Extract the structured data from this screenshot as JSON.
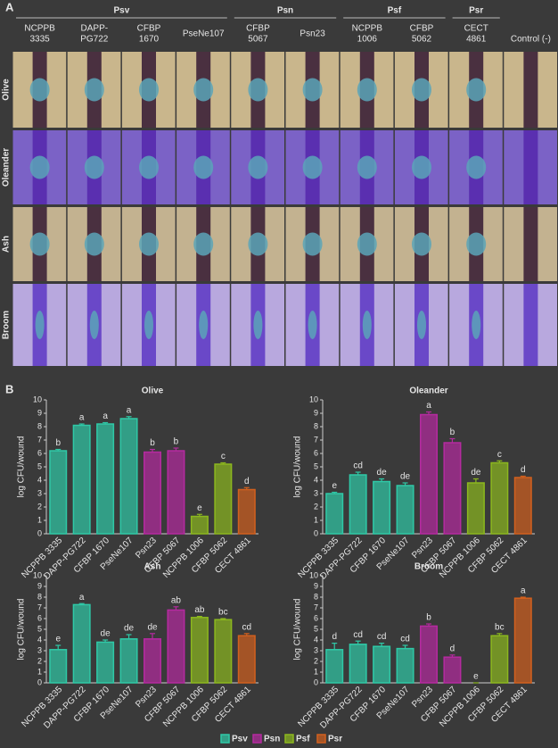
{
  "panel_a": {
    "label": "A",
    "groups": [
      {
        "name": "Psv",
        "strains": [
          [
            "NCPPB",
            "3335"
          ],
          [
            "DAPP-",
            "PG722"
          ],
          [
            "CFBP",
            "1670"
          ],
          [
            "PseNe107"
          ]
        ]
      },
      {
        "name": "Psn",
        "strains": [
          [
            "CFBP",
            "5067"
          ],
          [
            "Psn23"
          ]
        ]
      },
      {
        "name": "Psf",
        "strains": [
          [
            "NCPPB",
            "1006"
          ],
          [
            "CFBP",
            "5062"
          ]
        ]
      },
      {
        "name": "Psr",
        "strains": [
          [
            "CECT",
            "4861"
          ]
        ]
      }
    ],
    "control": "Control (-)",
    "rows": [
      "Olive",
      "Oleander",
      "Ash",
      "Broom"
    ]
  },
  "panel_b": {
    "label": "B"
  },
  "chart_data": [
    {
      "type": "bar",
      "title": "Olive",
      "ylabel": "log CFU/wound",
      "categories": [
        "NCPPB 3335",
        "DAPP-PG722",
        "CFBP 1670",
        "PseNe107",
        "Psn23",
        "CFBP 5067",
        "NCPPB 1006",
        "CFBP 5062",
        "CECT 4861"
      ],
      "values": [
        6.2,
        8.1,
        8.2,
        8.6,
        6.1,
        6.2,
        1.3,
        5.2,
        3.3
      ],
      "errors": [
        0.1,
        0.1,
        0.1,
        0.15,
        0.2,
        0.2,
        0.15,
        0.1,
        0.15
      ],
      "letters": [
        "b",
        "a",
        "a",
        "a",
        "b",
        "b",
        "e",
        "c",
        "d"
      ],
      "colors": [
        "#2fc9a7",
        "#2fc9a7",
        "#2fc9a7",
        "#2fc9a7",
        "#b52aa0",
        "#b52aa0",
        "#8cb81e",
        "#8cb81e",
        "#d2601e"
      ],
      "ylim": [
        0,
        10
      ],
      "yticks": [
        0,
        1,
        2,
        3,
        4,
        5,
        6,
        7,
        8,
        9,
        10
      ]
    },
    {
      "type": "bar",
      "title": "Oleander",
      "ylabel": "log CFU/wound",
      "categories": [
        "NCPPB 3335",
        "DAPP-PG722",
        "CFBP 1670",
        "PseNe107",
        "Psn23",
        "CFBP 5067",
        "NCPPB 1006",
        "CFBP 5062",
        "CECT 4861"
      ],
      "values": [
        3.0,
        4.4,
        3.9,
        3.6,
        8.9,
        6.8,
        3.8,
        5.3,
        4.2
      ],
      "errors": [
        0.1,
        0.2,
        0.2,
        0.2,
        0.2,
        0.3,
        0.3,
        0.15,
        0.1
      ],
      "letters": [
        "e",
        "cd",
        "de",
        "de",
        "a",
        "b",
        "de",
        "c",
        "d"
      ],
      "colors": [
        "#2fc9a7",
        "#2fc9a7",
        "#2fc9a7",
        "#2fc9a7",
        "#b52aa0",
        "#b52aa0",
        "#8cb81e",
        "#8cb81e",
        "#d2601e"
      ],
      "ylim": [
        0,
        10
      ],
      "yticks": [
        0,
        1,
        2,
        3,
        4,
        5,
        6,
        7,
        8,
        9,
        10
      ]
    },
    {
      "type": "bar",
      "title": "Ash",
      "ylabel": "log CFU/wound",
      "categories": [
        "NCPPB 3335",
        "DAPP-PG722",
        "CFBP 1670",
        "PseNe107",
        "Psn23",
        "CFBP 5067",
        "NCPPB 1006",
        "CFBP 5062",
        "CECT 4861"
      ],
      "values": [
        3.1,
        7.3,
        3.8,
        4.1,
        4.1,
        6.8,
        6.1,
        5.9,
        4.4
      ],
      "errors": [
        0.4,
        0.1,
        0.2,
        0.4,
        0.5,
        0.3,
        0.1,
        0.1,
        0.2
      ],
      "letters": [
        "e",
        "a",
        "de",
        "de",
        "de",
        "ab",
        "ab",
        "bc",
        "cd"
      ],
      "colors": [
        "#2fc9a7",
        "#2fc9a7",
        "#2fc9a7",
        "#2fc9a7",
        "#b52aa0",
        "#b52aa0",
        "#8cb81e",
        "#8cb81e",
        "#d2601e"
      ],
      "ylim": [
        0,
        10
      ],
      "yticks": [
        0,
        1,
        2,
        3,
        4,
        5,
        6,
        7,
        8,
        9,
        10
      ]
    },
    {
      "type": "bar",
      "title": "Broom",
      "ylabel": "log CFU/wound",
      "categories": [
        "NCPPB 3335",
        "DAPP-PG722",
        "CFBP 1670",
        "PseNe107",
        "Psn23",
        "CFBP 5067",
        "NCPPB 1006",
        "CFBP 5062",
        "CECT 4861"
      ],
      "values": [
        3.1,
        3.6,
        3.4,
        3.2,
        5.3,
        2.4,
        0,
        4.4,
        7.9
      ],
      "errors": [
        0.6,
        0.3,
        0.3,
        0.3,
        0.2,
        0.2,
        0,
        0.2,
        0.1
      ],
      "letters": [
        "d",
        "cd",
        "cd",
        "cd",
        "b",
        "d",
        "e",
        "bc",
        "a"
      ],
      "colors": [
        "#2fc9a7",
        "#2fc9a7",
        "#2fc9a7",
        "#2fc9a7",
        "#b52aa0",
        "#b52aa0",
        "#8cb81e",
        "#8cb81e",
        "#d2601e"
      ],
      "ylim": [
        0,
        10
      ],
      "yticks": [
        0,
        1,
        2,
        3,
        4,
        5,
        6,
        7,
        8,
        9,
        10
      ]
    }
  ],
  "legend": [
    {
      "name": "Psv",
      "color": "#2fc9a7"
    },
    {
      "name": "Psn",
      "color": "#b52aa0"
    },
    {
      "name": "Psf",
      "color": "#8cb81e"
    },
    {
      "name": "Psr",
      "color": "#d2601e"
    }
  ]
}
